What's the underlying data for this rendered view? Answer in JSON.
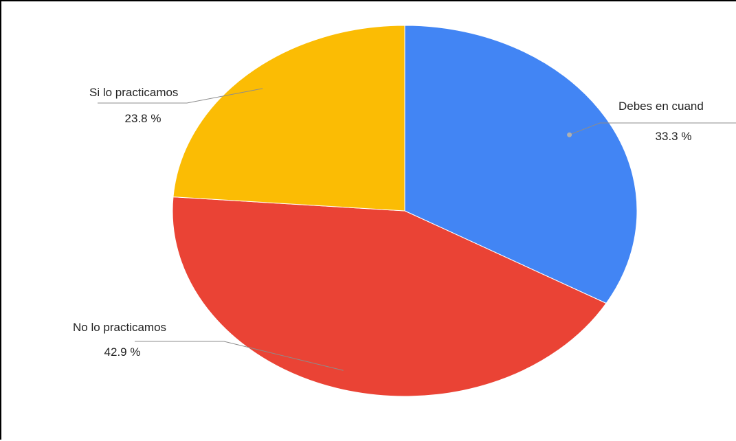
{
  "chart_data": {
    "type": "pie",
    "categories": [
      "Debes en cuand",
      "No lo practicamos",
      "Si lo practicamos"
    ],
    "values": [
      33.3,
      42.9,
      23.8
    ],
    "value_labels": [
      "33.3 %",
      "42.9 %",
      "23.8 %"
    ],
    "colors": [
      "#4285F4",
      "#EA4335",
      "#FBBC04"
    ],
    "start": "top, clockwise",
    "legend": "none",
    "labels": "outside with leader lines"
  }
}
